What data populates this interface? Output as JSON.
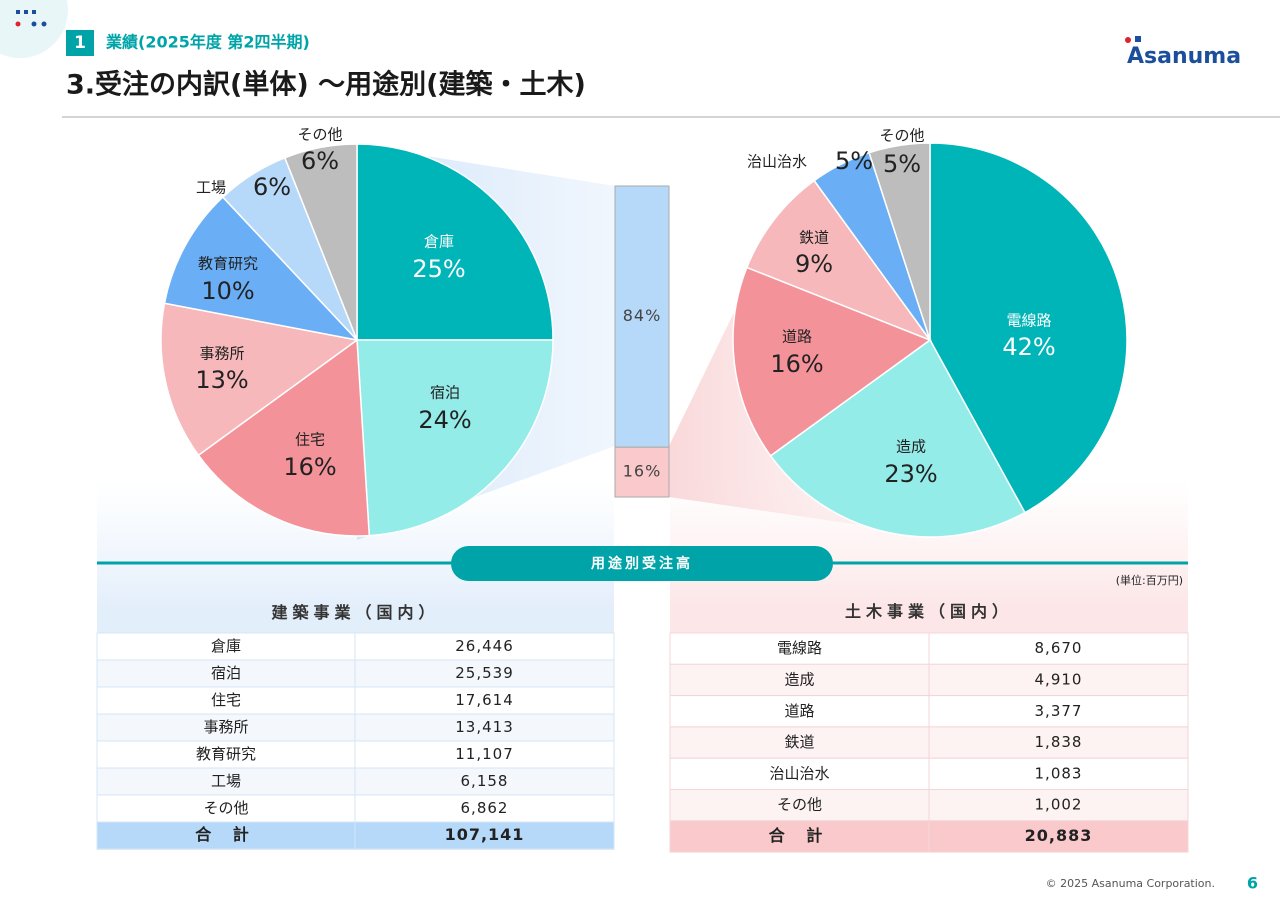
{
  "header": {
    "section_number": "1",
    "section": "業績(2025年度 第2四半期)",
    "title": "3.受注の内訳(単体) ～用途別(建築・土木)",
    "logo": "Asanuma"
  },
  "chart_data": [
    {
      "type": "pie",
      "categories": [
        "倉庫",
        "宿泊",
        "住宅",
        "事務所",
        "教育研究",
        "工場",
        "その他"
      ],
      "values": [
        25,
        24,
        16,
        13,
        10,
        6,
        6
      ],
      "value_labels": [
        "25%",
        "24%",
        "16%",
        "13%",
        "10%",
        "6%",
        "6%"
      ],
      "colors": [
        "#00b5b8",
        "#94ece9",
        "#f4929a",
        "#f7b8bb",
        "#6aaef5",
        "#b7d9f9",
        "#bdbdbd"
      ]
    },
    {
      "type": "stacked_bar",
      "values": [
        84,
        16
      ],
      "value_labels": [
        "84%",
        "16%"
      ],
      "colors": [
        "#b7d9f9",
        "#f9c9cb"
      ]
    },
    {
      "type": "pie",
      "categories": [
        "電線路",
        "造成",
        "道路",
        "鉄道",
        "治山治水",
        "その他"
      ],
      "values": [
        42,
        23,
        16,
        9,
        5,
        5
      ],
      "value_labels": [
        "42%",
        "23%",
        "16%",
        "9%",
        "5%",
        "5%"
      ],
      "colors": [
        "#00b5b8",
        "#94ece9",
        "#f4929a",
        "#f7b8bb",
        "#6aaef5",
        "#bdbdbd"
      ]
    }
  ],
  "section_label": "用途別受注高",
  "unit": "(単位:百万円)",
  "tables": [
    {
      "title": "建築事業（国内）",
      "rows": [
        [
          "倉庫",
          "26,446"
        ],
        [
          "宿泊",
          "25,539"
        ],
        [
          "住宅",
          "17,614"
        ],
        [
          "事務所",
          "13,413"
        ],
        [
          "教育研究",
          "11,107"
        ],
        [
          "工場",
          "6,158"
        ],
        [
          "その他",
          "6,862"
        ]
      ],
      "total": [
        "合 計",
        "107,141"
      ]
    },
    {
      "title": "土木事業（国内）",
      "rows": [
        [
          "電線路",
          "8,670"
        ],
        [
          "造成",
          "4,910"
        ],
        [
          "道路",
          "3,377"
        ],
        [
          "鉄道",
          "1,838"
        ],
        [
          "治山治水",
          "1,083"
        ],
        [
          "その他",
          "1,002"
        ]
      ],
      "total": [
        "合 計",
        "20,883"
      ]
    }
  ],
  "footer": {
    "copyright": "© 2025 Asanuma Corporation.",
    "page": "6"
  }
}
